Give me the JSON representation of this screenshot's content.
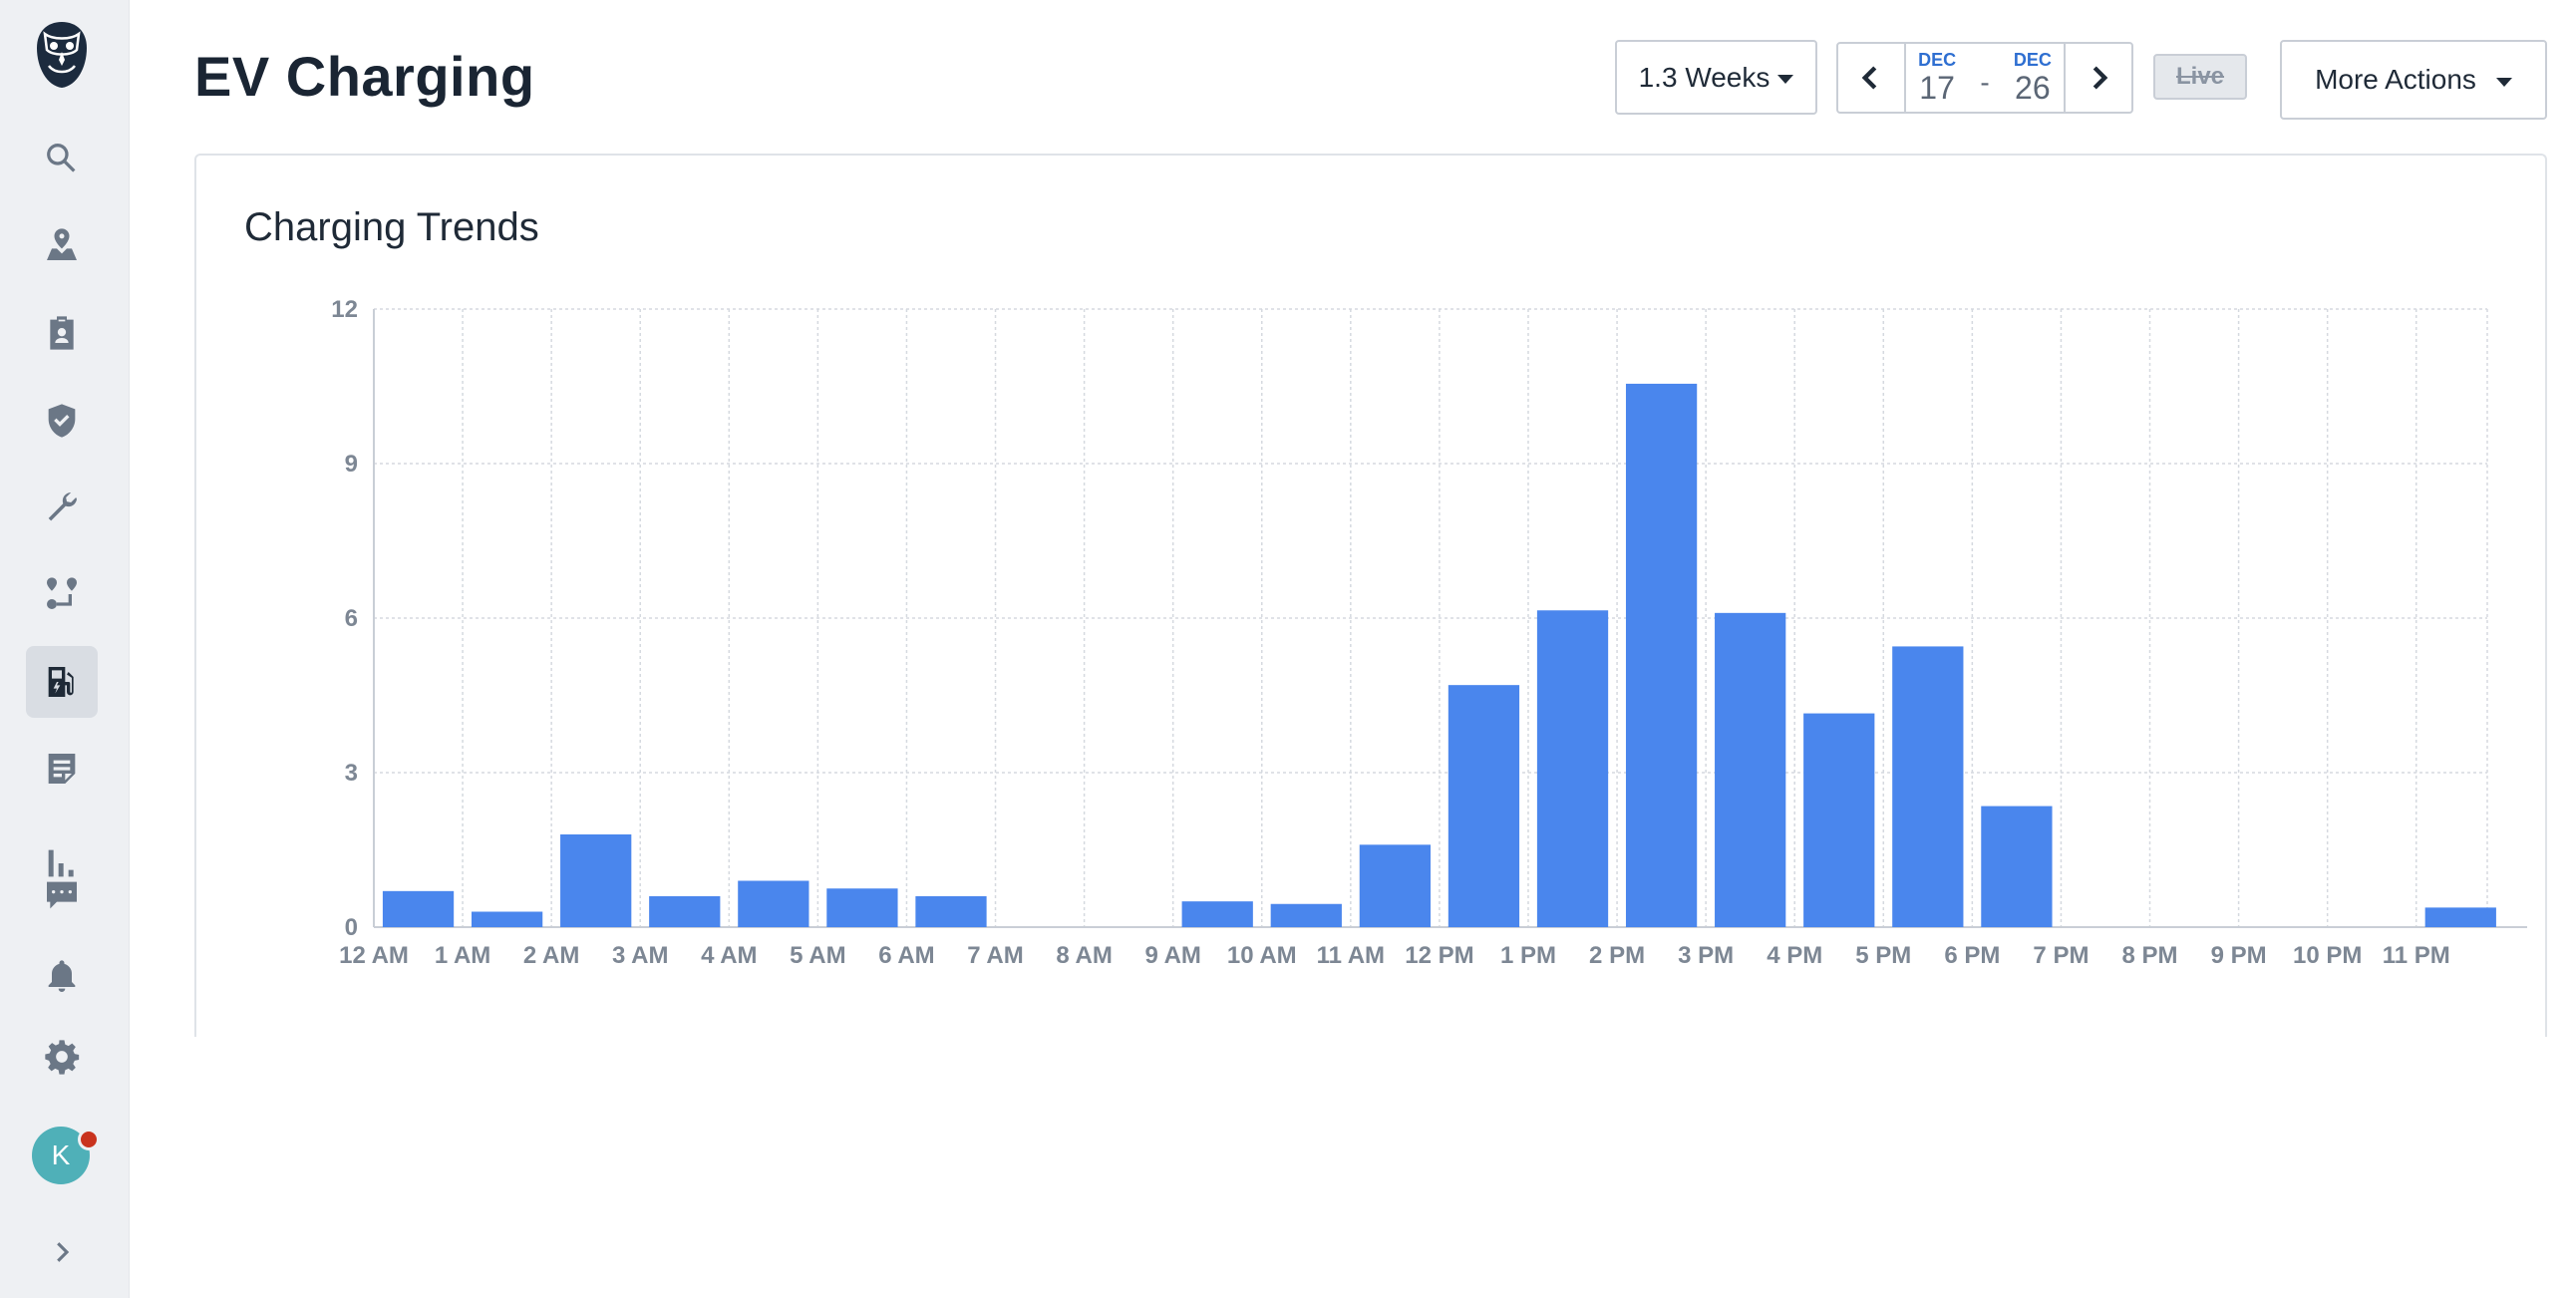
{
  "app": {
    "title": "EV Charging"
  },
  "sidebar": {
    "items": [
      {
        "icon": "search-icon"
      },
      {
        "icon": "map-pin-icon"
      },
      {
        "icon": "clipboard-user-icon"
      },
      {
        "icon": "shield-check-icon"
      },
      {
        "icon": "wrench-icon"
      },
      {
        "icon": "route-icon"
      },
      {
        "icon": "ev-charger-icon",
        "active": true
      },
      {
        "icon": "report-icon"
      },
      {
        "icon": "bar-chart-icon"
      },
      {
        "icon": "chat-icon"
      },
      {
        "icon": "bell-icon"
      },
      {
        "icon": "gear-icon"
      }
    ],
    "avatar_initial": "K",
    "expand_icon": "chevron-right-icon"
  },
  "toolbar": {
    "range_label": "1.3 Weeks",
    "start_month": "DEC",
    "start_day": "17",
    "separator": "-",
    "end_month": "DEC",
    "end_day": "26",
    "live_label": "Live",
    "more_actions_label": "More Actions"
  },
  "card": {
    "title": "Charging Trends"
  },
  "colors": {
    "bar": "#4a86ed",
    "accent": "#2f6fd1",
    "grid": "#d5d9df"
  },
  "chart_data": {
    "type": "bar",
    "title": "Charging Trends",
    "categories": [
      "12 AM",
      "1 AM",
      "2 AM",
      "3 AM",
      "4 AM",
      "5 AM",
      "6 AM",
      "7 AM",
      "8 AM",
      "9 AM",
      "10 AM",
      "11 AM",
      "12 PM",
      "1 PM",
      "2 PM",
      "3 PM",
      "4 PM",
      "5 PM",
      "6 PM",
      "7 PM",
      "8 PM",
      "9 PM",
      "10 PM",
      "11 PM"
    ],
    "values": [
      0.7,
      0.3,
      1.8,
      0.6,
      0.9,
      0.75,
      0.6,
      0,
      0,
      0.5,
      0.45,
      1.6,
      4.7,
      6.15,
      10.55,
      6.1,
      4.15,
      5.45,
      2.35,
      0,
      0,
      0,
      0,
      0.38
    ],
    "ylim": [
      0,
      12
    ],
    "yticks": [
      0,
      3,
      6,
      9,
      12
    ],
    "grid": true,
    "xlabel": "",
    "ylabel": ""
  }
}
